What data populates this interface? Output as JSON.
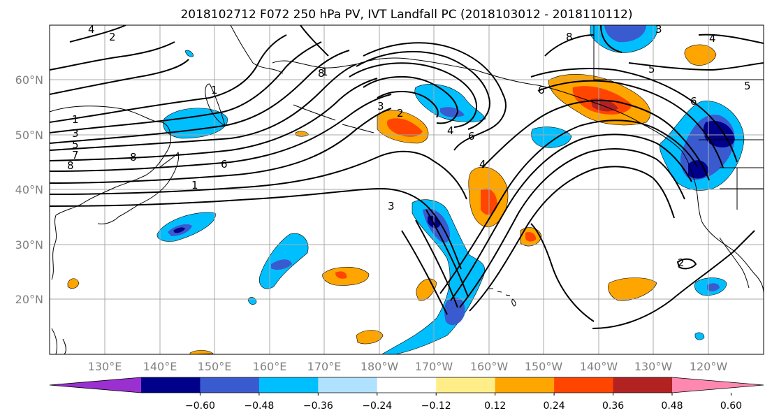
{
  "title": "2018102712 F072 250 hPa PV, IVT Landfall PC (2018103012 - 2018110112)",
  "lat_labels": [
    "60°N",
    "50°N",
    "40°N",
    "30°N",
    "20°N"
  ],
  "lon_labels": [
    "130°E",
    "140°E",
    "150°E",
    "160°E",
    "170°E",
    "180°W",
    "170°W",
    "160°W",
    "150°W",
    "140°W",
    "130°W",
    "120°W"
  ],
  "colorbar": {
    "colors": [
      "#9b30d0",
      "#00008b",
      "#3a5bd0",
      "#00bfff",
      "#b0e2ff",
      "#ffffff",
      "#ffee88",
      "#ffa500",
      "#ff4500",
      "#b22222",
      "#ff88b0"
    ],
    "tick_labels": [
      "−0.60",
      "−0.48",
      "−0.36",
      "−0.24",
      "−0.12",
      "0.12",
      "0.24",
      "0.36",
      "0.48",
      "0.60"
    ]
  },
  "contour_labels": [
    "2",
    "4",
    "1",
    "3",
    "5",
    "7",
    "8",
    "6",
    "8",
    "1",
    "2",
    "3",
    "4",
    "6",
    "8",
    "5",
    "6",
    "4",
    "3",
    "1",
    "2",
    "4",
    "5",
    "6",
    "8",
    "3",
    "1"
  ]
}
